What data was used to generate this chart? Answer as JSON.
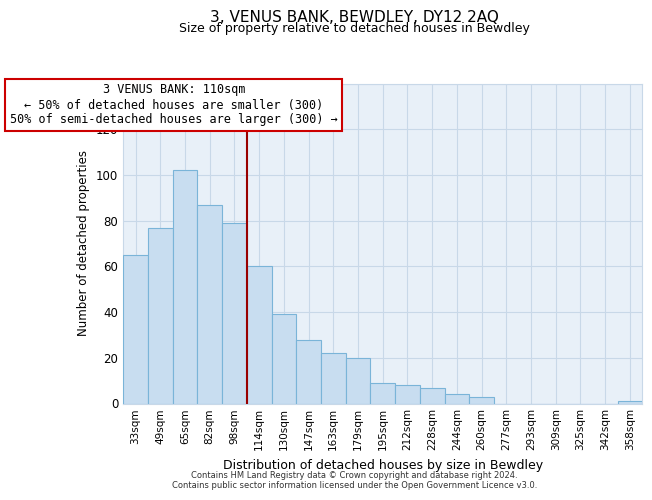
{
  "title": "3, VENUS BANK, BEWDLEY, DY12 2AQ",
  "subtitle": "Size of property relative to detached houses in Bewdley",
  "xlabel": "Distribution of detached houses by size in Bewdley",
  "ylabel": "Number of detached properties",
  "bar_labels": [
    "33sqm",
    "49sqm",
    "65sqm",
    "82sqm",
    "98sqm",
    "114sqm",
    "130sqm",
    "147sqm",
    "163sqm",
    "179sqm",
    "195sqm",
    "212sqm",
    "228sqm",
    "244sqm",
    "260sqm",
    "277sqm",
    "293sqm",
    "309sqm",
    "325sqm",
    "342sqm",
    "358sqm"
  ],
  "bar_values": [
    65,
    77,
    102,
    87,
    79,
    60,
    39,
    28,
    22,
    20,
    9,
    8,
    7,
    4,
    3,
    0,
    0,
    0,
    0,
    0,
    1
  ],
  "bar_color": "#c8ddf0",
  "bar_edge_color": "#7ab4d8",
  "red_line_index": 5,
  "annotation_title": "3 VENUS BANK: 110sqm",
  "annotation_line1": "← 50% of detached houses are smaller (300)",
  "annotation_line2": "50% of semi-detached houses are larger (300) →",
  "ylim": [
    0,
    140
  ],
  "yticks": [
    0,
    20,
    40,
    60,
    80,
    100,
    120,
    140
  ],
  "grid_color": "#c8d8e8",
  "bg_color": "#e8f0f8",
  "footer_line1": "Contains HM Land Registry data © Crown copyright and database right 2024.",
  "footer_line2": "Contains public sector information licensed under the Open Government Licence v3.0."
}
